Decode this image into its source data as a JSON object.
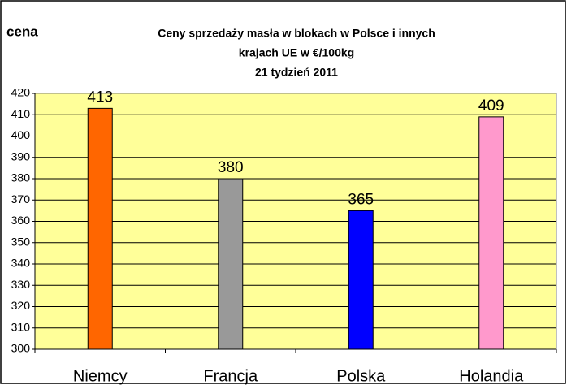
{
  "chart_data": {
    "type": "bar",
    "title": [
      "Ceny sprzedaży masła w blokach w Polsce i  innych",
      "krajach UE w €/100kg",
      "21 tydzień 2011"
    ],
    "y_label": "cena",
    "categories": [
      "Niemcy",
      "Francja",
      "Polska",
      "Holandia"
    ],
    "values": [
      413,
      380,
      365,
      409
    ],
    "colors": [
      "#ff6600",
      "#999999",
      "#0000ff",
      "#ff99cc"
    ],
    "ylim": [
      300,
      420
    ],
    "yticks": [
      300,
      310,
      320,
      330,
      340,
      350,
      360,
      370,
      380,
      390,
      400,
      410,
      420
    ],
    "grid": true
  }
}
